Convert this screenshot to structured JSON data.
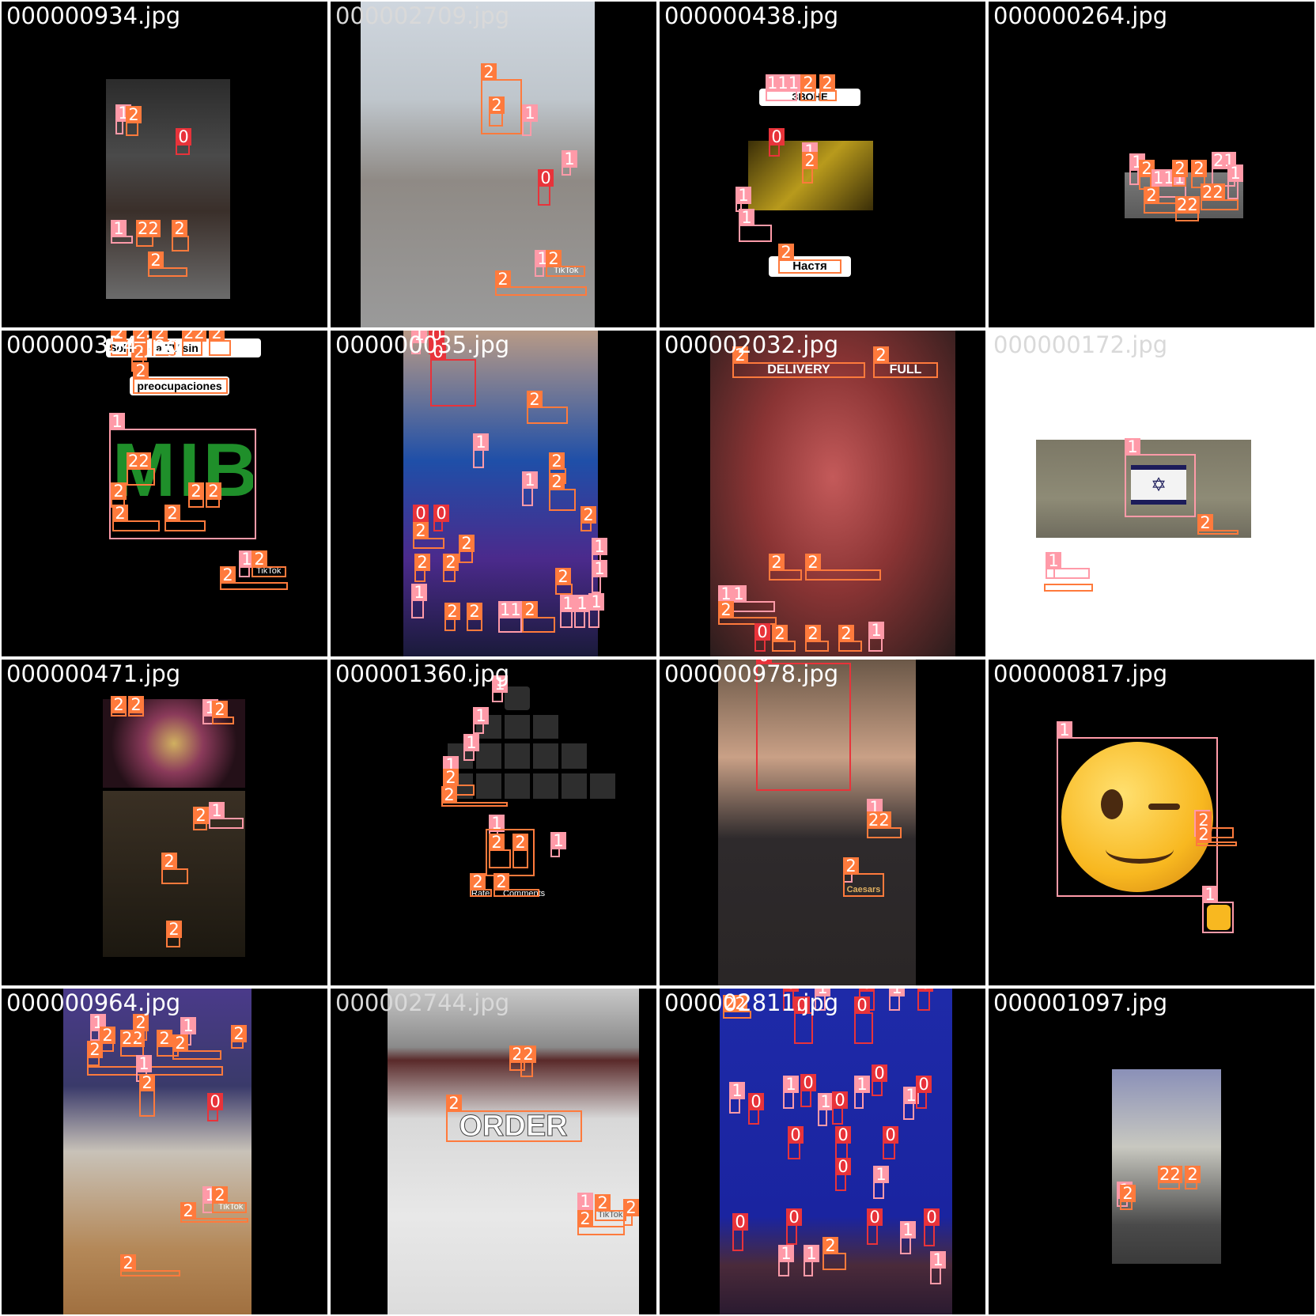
{
  "tiles": [
    {
      "filename": "000000934.jpg"
    },
    {
      "filename": "000002709.jpg"
    },
    {
      "filename": "000000438.jpg"
    },
    {
      "filename": "000000264.jpg"
    },
    {
      "filename": "000000354.jpg"
    },
    {
      "filename": "000000035.jpg"
    },
    {
      "filename": "000002032.jpg"
    },
    {
      "filename": "000000172.jpg"
    },
    {
      "filename": "000000471.jpg"
    },
    {
      "filename": "000001360.jpg"
    },
    {
      "filename": "000000978.jpg"
    },
    {
      "filename": "000000817.jpg"
    },
    {
      "filename": "000000964.jpg"
    },
    {
      "filename": "000002744.jpg"
    },
    {
      "filename": "000002811.jpg"
    },
    {
      "filename": "000001097.jpg"
    }
  ],
  "captions": {
    "t2_top": "ЗВОНЕ",
    "t2_bottom": "Настя",
    "t4_line1": "Sol   ndo la TV sin",
    "t4_line2": "preocupaciones",
    "t4_logo": "MIB",
    "t6_banner1": "DELIVERY",
    "t6_banner2": "FULL",
    "t9_rate": "Rate",
    "t9_comments": "Comments",
    "t10_sign": "Caesars",
    "t13_word": "ORDER",
    "tiktok": "TikTok"
  },
  "colors": {
    "class0": "#e8333a",
    "class1": "#ff9aa8",
    "class2": "#ff7a3c"
  }
}
